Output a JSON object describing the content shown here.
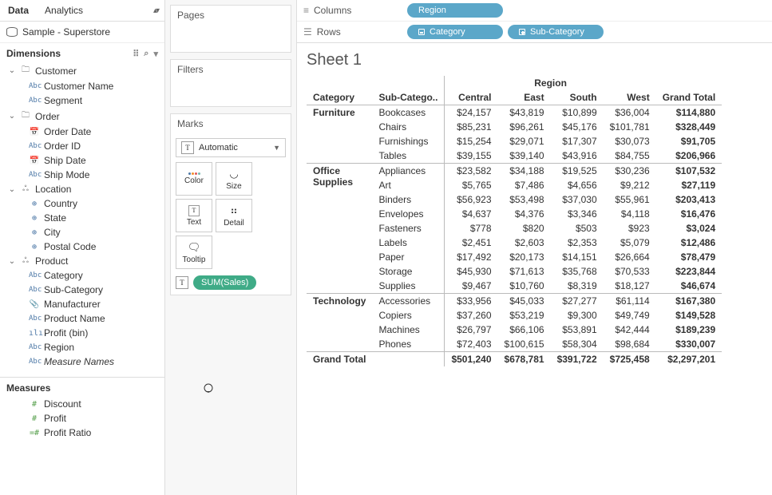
{
  "leftPane": {
    "dataTab": "Data",
    "analyticsTab": "Analytics",
    "datasource": "Sample - Superstore",
    "dimensionsLabel": "Dimensions",
    "measuresLabel": "Measures",
    "tree": {
      "customer": "Customer",
      "customerName": "Customer Name",
      "segment": "Segment",
      "order": "Order",
      "orderDate": "Order Date",
      "orderId": "Order ID",
      "shipDate": "Ship Date",
      "shipMode": "Ship Mode",
      "location": "Location",
      "country": "Country",
      "state": "State",
      "city": "City",
      "postalCode": "Postal Code",
      "product": "Product",
      "category": "Category",
      "subCategory": "Sub-Category",
      "manufacturer": "Manufacturer",
      "productName": "Product Name",
      "profitBin": "Profit (bin)",
      "region": "Region",
      "measureNames": "Measure Names"
    },
    "measures": {
      "discount": "Discount",
      "profit": "Profit",
      "profitRatio": "Profit Ratio"
    }
  },
  "cards": {
    "pages": "Pages",
    "filters": "Filters",
    "marks": "Marks",
    "markType": "Automatic",
    "colorBtn": "Color",
    "sizeBtn": "Size",
    "textBtn": "Text",
    "detailBtn": "Detail",
    "tooltipBtn": "Tooltip",
    "sumSales": "SUM(Sales)"
  },
  "shelves": {
    "columnsLabel": "Columns",
    "rowsLabel": "Rows",
    "regionPill": "Region",
    "categoryPill": "Category",
    "subCategoryPill": "Sub-Category"
  },
  "sheet": {
    "title": "Sheet 1",
    "regionHeader": "Region",
    "headers": {
      "category": "Category",
      "subCategory": "Sub-Catego..",
      "central": "Central",
      "east": "East",
      "south": "South",
      "west": "West",
      "grandTotal": "Grand Total"
    },
    "groups": [
      {
        "category": "Furniture",
        "rows": [
          {
            "sub": "Bookcases",
            "c": "$24,157",
            "e": "$43,819",
            "s": "$10,899",
            "w": "$36,004",
            "t": "$114,880"
          },
          {
            "sub": "Chairs",
            "c": "$85,231",
            "e": "$96,261",
            "s": "$45,176",
            "w": "$101,781",
            "t": "$328,449"
          },
          {
            "sub": "Furnishings",
            "c": "$15,254",
            "e": "$29,071",
            "s": "$17,307",
            "w": "$30,073",
            "t": "$91,705"
          },
          {
            "sub": "Tables",
            "c": "$39,155",
            "e": "$39,140",
            "s": "$43,916",
            "w": "$84,755",
            "t": "$206,966"
          }
        ]
      },
      {
        "category": "Office Supplies",
        "rows": [
          {
            "sub": "Appliances",
            "c": "$23,582",
            "e": "$34,188",
            "s": "$19,525",
            "w": "$30,236",
            "t": "$107,532"
          },
          {
            "sub": "Art",
            "c": "$5,765",
            "e": "$7,486",
            "s": "$4,656",
            "w": "$9,212",
            "t": "$27,119"
          },
          {
            "sub": "Binders",
            "c": "$56,923",
            "e": "$53,498",
            "s": "$37,030",
            "w": "$55,961",
            "t": "$203,413"
          },
          {
            "sub": "Envelopes",
            "c": "$4,637",
            "e": "$4,376",
            "s": "$3,346",
            "w": "$4,118",
            "t": "$16,476"
          },
          {
            "sub": "Fasteners",
            "c": "$778",
            "e": "$820",
            "s": "$503",
            "w": "$923",
            "t": "$3,024"
          },
          {
            "sub": "Labels",
            "c": "$2,451",
            "e": "$2,603",
            "s": "$2,353",
            "w": "$5,079",
            "t": "$12,486"
          },
          {
            "sub": "Paper",
            "c": "$17,492",
            "e": "$20,173",
            "s": "$14,151",
            "w": "$26,664",
            "t": "$78,479"
          },
          {
            "sub": "Storage",
            "c": "$45,930",
            "e": "$71,613",
            "s": "$35,768",
            "w": "$70,533",
            "t": "$223,844"
          },
          {
            "sub": "Supplies",
            "c": "$9,467",
            "e": "$10,760",
            "s": "$8,319",
            "w": "$18,127",
            "t": "$46,674"
          }
        ]
      },
      {
        "category": "Technology",
        "rows": [
          {
            "sub": "Accessories",
            "c": "$33,956",
            "e": "$45,033",
            "s": "$27,277",
            "w": "$61,114",
            "t": "$167,380"
          },
          {
            "sub": "Copiers",
            "c": "$37,260",
            "e": "$53,219",
            "s": "$9,300",
            "w": "$49,749",
            "t": "$149,528"
          },
          {
            "sub": "Machines",
            "c": "$26,797",
            "e": "$66,106",
            "s": "$53,891",
            "w": "$42,444",
            "t": "$189,239"
          },
          {
            "sub": "Phones",
            "c": "$72,403",
            "e": "$100,615",
            "s": "$58,304",
            "w": "$98,684",
            "t": "$330,007"
          }
        ]
      }
    ],
    "grandTotal": {
      "label": "Grand Total",
      "c": "$501,240",
      "e": "$678,781",
      "s": "$391,722",
      "w": "$725,458",
      "t": "$2,297,201"
    }
  },
  "colors": {
    "bluePill": "#5ba7c9",
    "greenPill": "#3fab87"
  }
}
